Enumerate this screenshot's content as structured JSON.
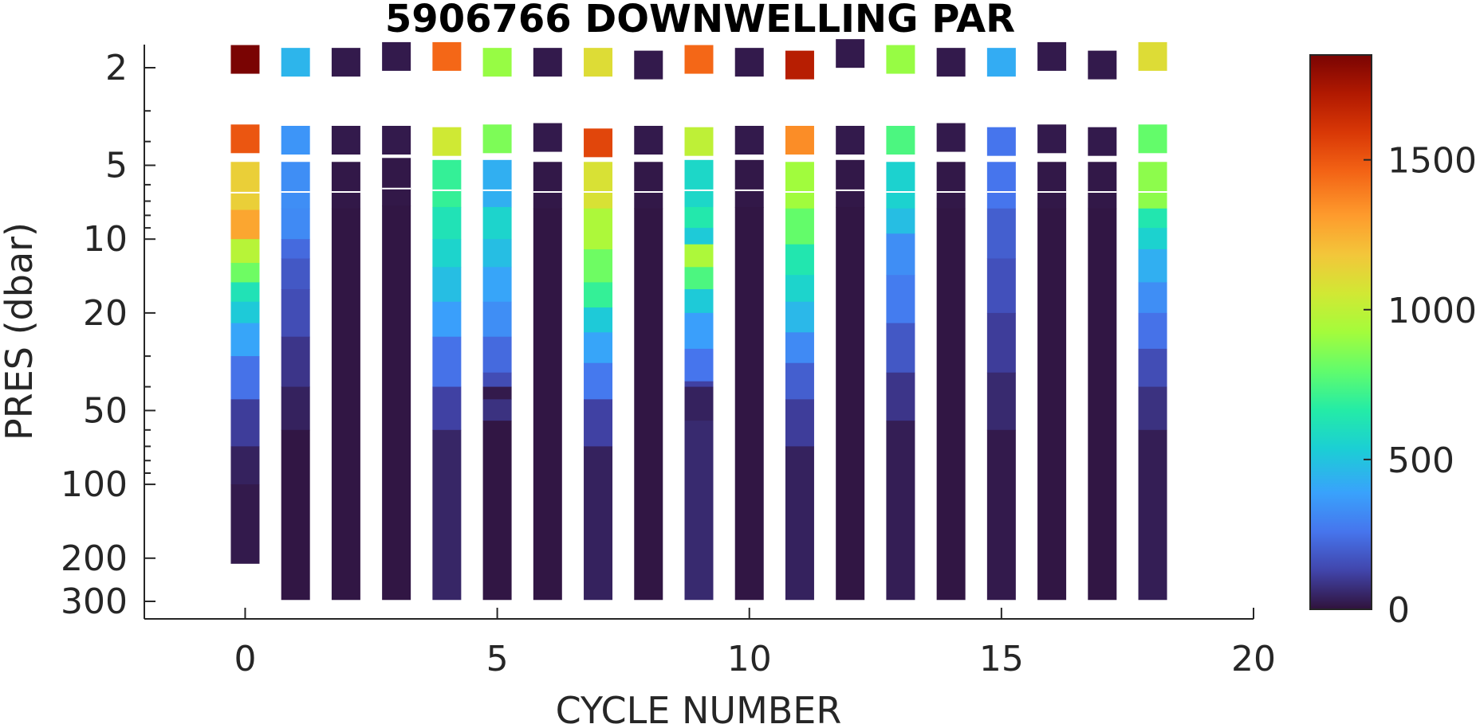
{
  "chart_data": {
    "type": "heatmap",
    "title": "5906766  DOWNWELLING PAR",
    "xlabel": "CYCLE NUMBER",
    "ylabel": "PRES (dbar)",
    "xlim": [
      -2,
      20
    ],
    "ylim": [
      1.55,
      365
    ],
    "y_scale": "log",
    "y_reversed": true,
    "x_ticks": [
      0,
      5,
      10,
      15,
      20
    ],
    "x_tick_labels": [
      "0",
      "5",
      "10",
      "15",
      "20"
    ],
    "y_ticks": [
      2,
      5,
      10,
      20,
      50,
      100,
      200,
      300
    ],
    "y_tick_labels": [
      "2",
      "5",
      "10",
      "20",
      "50",
      "100",
      "200",
      "300"
    ],
    "colorbar": {
      "colormap": "turbo",
      "clim": [
        0,
        1850
      ],
      "ticks": [
        0,
        500,
        1000,
        1500
      ],
      "tick_labels": [
        "0",
        "500",
        "1000",
        "1500"
      ]
    },
    "grid": false,
    "profiles": [
      {
        "cycle": 0,
        "surface": [
          {
            "p": 1.85,
            "v": 1850
          },
          {
            "p": 3.9,
            "v": 1500
          }
        ],
        "bottom": 210,
        "profile": [
          [
            5.5,
            1150
          ],
          [
            7.6,
            1280
          ],
          [
            10,
            980
          ],
          [
            12.5,
            820
          ],
          [
            15,
            620
          ],
          [
            18,
            520
          ],
          [
            22,
            400
          ],
          [
            30,
            250
          ],
          [
            45,
            110
          ],
          [
            70,
            40
          ],
          [
            100,
            20
          ],
          [
            210,
            0
          ]
        ]
      },
      {
        "cycle": 1,
        "surface": [
          {
            "p": 1.9,
            "v": 450
          },
          {
            "p": 3.95,
            "v": 350
          }
        ],
        "bottom": 295,
        "profile": [
          [
            5.5,
            330
          ],
          [
            7.5,
            320
          ],
          [
            10,
            230
          ],
          [
            12,
            180
          ],
          [
            16,
            150
          ],
          [
            25,
            90
          ],
          [
            40,
            40
          ],
          [
            60,
            10
          ],
          [
            295,
            0
          ]
        ]
      },
      {
        "cycle": 2,
        "surface": [
          {
            "p": 1.9,
            "v": 20
          },
          {
            "p": 3.95,
            "v": 20
          }
        ],
        "bottom": 295,
        "profile": [
          [
            5.5,
            15
          ],
          [
            7.5,
            10
          ],
          [
            295,
            0
          ]
        ]
      },
      {
        "cycle": 3,
        "surface": [
          {
            "p": 1.8,
            "v": 20
          },
          {
            "p": 3.95,
            "v": 20
          }
        ],
        "bottom": 295,
        "profile": [
          [
            5.3,
            15
          ],
          [
            7.3,
            10
          ],
          [
            295,
            0
          ]
        ]
      },
      {
        "cycle": 4,
        "surface": [
          {
            "p": 1.8,
            "v": 1450
          },
          {
            "p": 4.0,
            "v": 1050
          }
        ],
        "bottom": 295,
        "profile": [
          [
            5.4,
            700
          ],
          [
            7.4,
            620
          ],
          [
            10,
            560
          ],
          [
            13,
            480
          ],
          [
            18,
            380
          ],
          [
            25,
            250
          ],
          [
            40,
            120
          ],
          [
            60,
            50
          ],
          [
            295,
            0
          ]
        ]
      },
      {
        "cycle": 5,
        "surface": [
          {
            "p": 1.9,
            "v": 900
          },
          {
            "p": 3.9,
            "v": 850
          }
        ],
        "bottom": 295,
        "profile": [
          [
            5.4,
            430
          ],
          [
            7.4,
            560
          ],
          [
            10,
            480
          ],
          [
            13,
            400
          ],
          [
            18,
            330
          ],
          [
            25,
            230
          ],
          [
            35,
            150
          ],
          [
            40,
            20
          ],
          [
            45,
            80
          ],
          [
            55,
            10
          ],
          [
            295,
            0
          ]
        ]
      },
      {
        "cycle": 6,
        "surface": [
          {
            "p": 1.9,
            "v": 20
          },
          {
            "p": 3.85,
            "v": 20
          }
        ],
        "bottom": 295,
        "profile": [
          [
            5.5,
            15
          ],
          [
            7.5,
            10
          ],
          [
            295,
            0
          ]
        ]
      },
      {
        "cycle": 7,
        "surface": [
          {
            "p": 1.9,
            "v": 1100
          },
          {
            "p": 4.05,
            "v": 1550
          }
        ],
        "bottom": 295,
        "profile": [
          [
            5.5,
            1080
          ],
          [
            7.5,
            950
          ],
          [
            11,
            820
          ],
          [
            15,
            700
          ],
          [
            19,
            520
          ],
          [
            24,
            400
          ],
          [
            32,
            270
          ],
          [
            45,
            120
          ],
          [
            70,
            40
          ],
          [
            295,
            0
          ]
        ]
      },
      {
        "cycle": 8,
        "surface": [
          {
            "p": 1.95,
            "v": 20
          },
          {
            "p": 3.95,
            "v": 20
          }
        ],
        "bottom": 295,
        "profile": [
          [
            5.5,
            15
          ],
          [
            7.5,
            10
          ],
          [
            295,
            0
          ]
        ]
      },
      {
        "cycle": 9,
        "surface": [
          {
            "p": 1.85,
            "v": 1450
          },
          {
            "p": 4.0,
            "v": 1000
          }
        ],
        "bottom": 295,
        "profile": [
          [
            5.4,
            570
          ],
          [
            7.4,
            650
          ],
          [
            9,
            520
          ],
          [
            10.5,
            950
          ],
          [
            13,
            750
          ],
          [
            16,
            520
          ],
          [
            20,
            380
          ],
          [
            28,
            260
          ],
          [
            38,
            120
          ],
          [
            40,
            40
          ],
          [
            55,
            60
          ],
          [
            295,
            0
          ]
        ]
      },
      {
        "cycle": 10,
        "surface": [
          {
            "p": 1.9,
            "v": 20
          },
          {
            "p": 3.95,
            "v": 20
          }
        ],
        "bottom": 295,
        "profile": [
          [
            5.4,
            15
          ],
          [
            7.4,
            10
          ],
          [
            295,
            0
          ]
        ]
      },
      {
        "cycle": 11,
        "surface": [
          {
            "p": 1.95,
            "v": 1700
          },
          {
            "p": 3.95,
            "v": 1350
          }
        ],
        "bottom": 295,
        "profile": [
          [
            5.5,
            920
          ],
          [
            7.5,
            800
          ],
          [
            10.5,
            640
          ],
          [
            14,
            560
          ],
          [
            18,
            460
          ],
          [
            24,
            320
          ],
          [
            32,
            200
          ],
          [
            45,
            110
          ],
          [
            70,
            40
          ],
          [
            295,
            0
          ]
        ]
      },
      {
        "cycle": 12,
        "surface": [
          {
            "p": 1.75,
            "v": 20
          },
          {
            "p": 3.95,
            "v": 20
          }
        ],
        "bottom": 295,
        "profile": [
          [
            5.4,
            15
          ],
          [
            7.4,
            10
          ],
          [
            295,
            0
          ]
        ]
      },
      {
        "cycle": 13,
        "surface": [
          {
            "p": 1.85,
            "v": 900
          },
          {
            "p": 3.95,
            "v": 750
          }
        ],
        "bottom": 295,
        "profile": [
          [
            5.5,
            550
          ],
          [
            7.5,
            480
          ],
          [
            9.5,
            330
          ],
          [
            14,
            280
          ],
          [
            22,
            180
          ],
          [
            35,
            90
          ],
          [
            55,
            30
          ],
          [
            295,
            0
          ]
        ]
      },
      {
        "cycle": 14,
        "surface": [
          {
            "p": 1.9,
            "v": 20
          },
          {
            "p": 3.85,
            "v": 20
          }
        ],
        "bottom": 295,
        "profile": [
          [
            5.5,
            15
          ],
          [
            7.5,
            10
          ],
          [
            295,
            0
          ]
        ]
      },
      {
        "cycle": 15,
        "surface": [
          {
            "p": 1.9,
            "v": 420
          },
          {
            "p": 4.0,
            "v": 260
          }
        ],
        "bottom": 295,
        "profile": [
          [
            5.5,
            260
          ],
          [
            7.5,
            200
          ],
          [
            12,
            160
          ],
          [
            20,
            110
          ],
          [
            35,
            60
          ],
          [
            60,
            20
          ],
          [
            295,
            0
          ]
        ]
      },
      {
        "cycle": 16,
        "surface": [
          {
            "p": 1.8,
            "v": 20
          },
          {
            "p": 3.9,
            "v": 20
          }
        ],
        "bottom": 295,
        "profile": [
          [
            5.5,
            15
          ],
          [
            7.5,
            10
          ],
          [
            295,
            0
          ]
        ]
      },
      {
        "cycle": 17,
        "surface": [
          {
            "p": 1.95,
            "v": 20
          },
          {
            "p": 4.0,
            "v": 20
          }
        ],
        "bottom": 295,
        "profile": [
          [
            5.5,
            15
          ],
          [
            7.5,
            10
          ],
          [
            295,
            0
          ]
        ]
      },
      {
        "cycle": 18,
        "surface": [
          {
            "p": 1.8,
            "v": 1100
          },
          {
            "p": 3.9,
            "v": 800
          }
        ],
        "bottom": 295,
        "profile": [
          [
            5.5,
            880
          ],
          [
            7.5,
            640
          ],
          [
            9,
            550
          ],
          [
            11,
            430
          ],
          [
            15,
            330
          ],
          [
            20,
            250
          ],
          [
            28,
            150
          ],
          [
            40,
            80
          ],
          [
            60,
            30
          ],
          [
            295,
            0
          ]
        ]
      }
    ]
  }
}
